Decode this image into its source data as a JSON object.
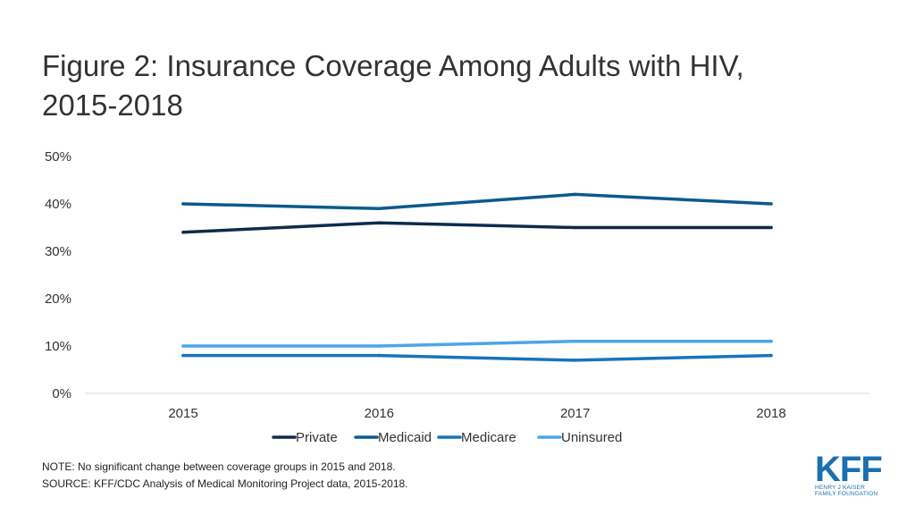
{
  "title_line1": "Figure 2: Insurance Coverage Among Adults with HIV,",
  "title_line2": "2015-2018",
  "chart_data": {
    "type": "line",
    "title": "Figure 2: Insurance Coverage Among Adults with HIV, 2015-2018",
    "xlabel": "",
    "ylabel": "",
    "categories": [
      "2015",
      "2016",
      "2017",
      "2018"
    ],
    "ylim": [
      0,
      50
    ],
    "yticks": [
      "0%",
      "10%",
      "20%",
      "30%",
      "40%",
      "50%"
    ],
    "ytick_values": [
      0,
      10,
      20,
      30,
      40,
      50
    ],
    "legend_position": "bottom",
    "series": [
      {
        "name": "Private",
        "values": [
          34,
          36,
          35,
          35
        ],
        "color": "#0d2c4a"
      },
      {
        "name": "Medicaid",
        "values": [
          40,
          39,
          42,
          40
        ],
        "color": "#0b5a8c"
      },
      {
        "name": "Medicare",
        "values": [
          8,
          8,
          7,
          8
        ],
        "color": "#1674bd"
      },
      {
        "name": "Uninsured",
        "values": [
          10,
          10,
          11,
          11
        ],
        "color": "#4aa6e8"
      }
    ]
  },
  "note": "NOTE: No significant change between coverage groups in 2015 and 2018.",
  "source": "SOURCE: KFF/CDC Analysis of Medical Monitoring Project data, 2015-2018.",
  "logo": {
    "mark": "KFF",
    "line1": "HENRY J KAISER",
    "line2": "FAMILY FOUNDATION",
    "color": "#1a6fb0"
  }
}
